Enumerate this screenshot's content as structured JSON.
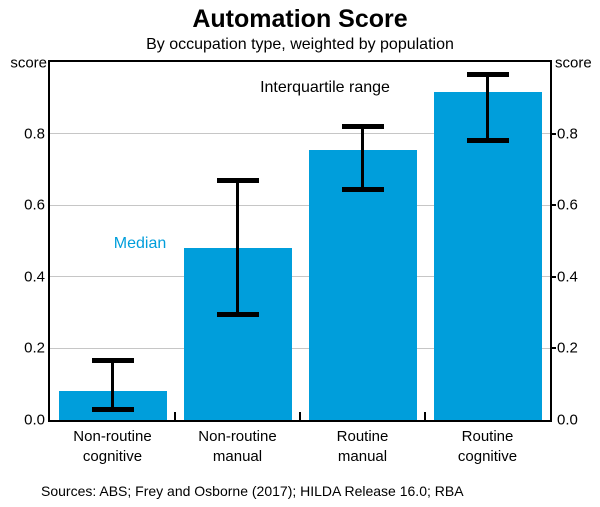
{
  "header": {
    "title": "Automation Score",
    "subtitle": "By occupation type, weighted by population"
  },
  "chart_data": {
    "type": "bar",
    "categories": [
      [
        "Non-routine",
        "cognitive"
      ],
      [
        "Non-routine",
        "manual"
      ],
      [
        "Routine",
        "manual"
      ],
      [
        "Routine",
        "cognitive"
      ]
    ],
    "series": [
      {
        "name": "Median",
        "values": [
          0.08,
          0.48,
          0.755,
          0.915
        ]
      },
      {
        "name": "Lower quartile",
        "values": [
          0.03,
          0.295,
          0.645,
          0.78
        ]
      },
      {
        "name": "Upper quartile",
        "values": [
          0.165,
          0.67,
          0.82,
          0.965
        ]
      }
    ],
    "title": "Automation Score",
    "xlabel": "",
    "ylabel_unit": "score",
    "ylim": [
      0,
      1.0
    ],
    "yticks": [
      0.0,
      0.2,
      0.4,
      0.6,
      0.8
    ],
    "ytick_labels": [
      "0.0",
      "0.2",
      "0.4",
      "0.6",
      "0.8"
    ],
    "grid": true,
    "legend_position": "none",
    "bar_color": "#009edb",
    "error_bar_color": "#000000",
    "annotations": [
      {
        "id": "median",
        "text": "Median",
        "color": "#009edb"
      },
      {
        "id": "iqr",
        "text": "Interquartile range",
        "color": "#000000"
      }
    ]
  },
  "footer": {
    "sources": "Sources: ABS; Frey and Osborne (2017); HILDA Release 16.0; RBA"
  }
}
